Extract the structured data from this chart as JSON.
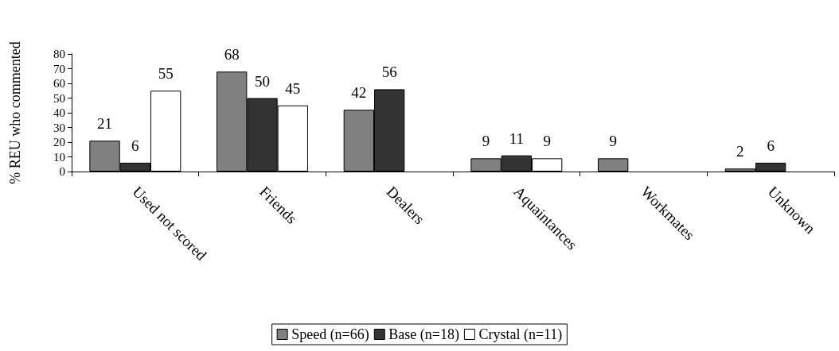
{
  "chart_data": {
    "type": "bar",
    "ylabel": "% REU who commented",
    "categories": [
      "Used not scored",
      "Friends",
      "Dealers",
      "Aquaintances",
      "Workmates",
      "Unknown"
    ],
    "series": [
      {
        "name": "Speed (n=66)",
        "color": "#808080",
        "values": [
          21,
          68,
          42,
          9,
          9,
          2
        ]
      },
      {
        "name": "Base (n=18)",
        "color": "#333333",
        "values": [
          6,
          50,
          56,
          11,
          null,
          6
        ]
      },
      {
        "name": "Crystal (n=11)",
        "color": "#ffffff",
        "values": [
          55,
          45,
          null,
          9,
          null,
          null
        ]
      }
    ],
    "ylim": [
      0,
      80
    ],
    "yticks": [
      0,
      10,
      20,
      30,
      40,
      50,
      60,
      70,
      80
    ],
    "grid": false,
    "legend": "bottom",
    "data_labels": true
  }
}
